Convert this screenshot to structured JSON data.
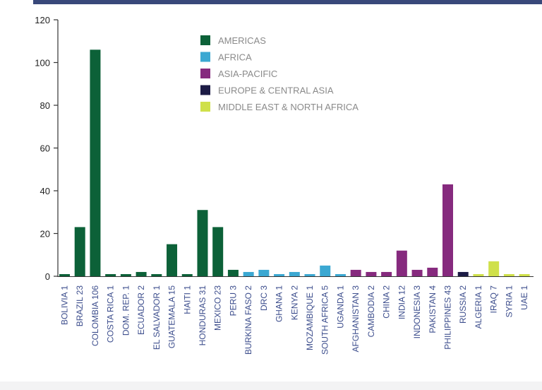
{
  "chart_data": {
    "type": "bar",
    "ylim": [
      0,
      120
    ],
    "yticks": [
      0,
      20,
      40,
      60,
      80,
      100,
      120
    ],
    "grid": false,
    "legend_position": "top-center",
    "legend": [
      {
        "name": "AMERICAS",
        "color": "#0c6138"
      },
      {
        "name": "AFRICA",
        "color": "#3ba8d2"
      },
      {
        "name": "ASIA-PACIFIC",
        "color": "#862a7e"
      },
      {
        "name": "EUROPE & CENTRAL ASIA",
        "color": "#1c1b45"
      },
      {
        "name": "MIDDLE EAST & NORTH AFRICA",
        "color": "#cfe04a"
      }
    ],
    "bars": [
      {
        "label": "BOLIVIA 1",
        "value": 1,
        "region": "AMERICAS"
      },
      {
        "label": "BRAZIL 23",
        "value": 23,
        "region": "AMERICAS"
      },
      {
        "label": "COLOMBIA 106",
        "value": 106,
        "region": "AMERICAS"
      },
      {
        "label": "COSTA RICA 1",
        "value": 1,
        "region": "AMERICAS"
      },
      {
        "label": "DOM. REP. 1",
        "value": 1,
        "region": "AMERICAS"
      },
      {
        "label": "ECUADOR 2",
        "value": 2,
        "region": "AMERICAS"
      },
      {
        "label": "EL SALVADOR 1",
        "value": 1,
        "region": "AMERICAS"
      },
      {
        "label": "GUATEMALA 15",
        "value": 15,
        "region": "AMERICAS"
      },
      {
        "label": "HAITI 1",
        "value": 1,
        "region": "AMERICAS"
      },
      {
        "label": "HONDURAS 31",
        "value": 31,
        "region": "AMERICAS"
      },
      {
        "label": "MEXICO 23",
        "value": 23,
        "region": "AMERICAS"
      },
      {
        "label": "PERU 3",
        "value": 3,
        "region": "AMERICAS"
      },
      {
        "label": "BURKINA FASO 2",
        "value": 2,
        "region": "AFRICA"
      },
      {
        "label": "DRC 3",
        "value": 3,
        "region": "AFRICA"
      },
      {
        "label": "GHANA 1",
        "value": 1,
        "region": "AFRICA"
      },
      {
        "label": "KENYA 2",
        "value": 2,
        "region": "AFRICA"
      },
      {
        "label": "MOZAMBIQUE 1",
        "value": 1,
        "region": "AFRICA"
      },
      {
        "label": "SOUTH AFRICA 5",
        "value": 5,
        "region": "AFRICA"
      },
      {
        "label": "UGANDA 1",
        "value": 1,
        "region": "AFRICA"
      },
      {
        "label": "AFGHANISTAN 3",
        "value": 3,
        "region": "ASIA-PACIFIC"
      },
      {
        "label": "CAMBODIA 2",
        "value": 2,
        "region": "ASIA-PACIFIC"
      },
      {
        "label": "CHINA 2",
        "value": 2,
        "region": "ASIA-PACIFIC"
      },
      {
        "label": "INDIA 12",
        "value": 12,
        "region": "ASIA-PACIFIC"
      },
      {
        "label": "INDONESIA 3",
        "value": 3,
        "region": "ASIA-PACIFIC"
      },
      {
        "label": "PAKISTAN 4",
        "value": 4,
        "region": "ASIA-PACIFIC"
      },
      {
        "label": "PHILIPPINES 43",
        "value": 43,
        "region": "ASIA-PACIFIC"
      },
      {
        "label": "RUSSIA 2",
        "value": 2,
        "region": "EUROPE & CENTRAL ASIA"
      },
      {
        "label": "ALGERIA 1",
        "value": 1,
        "region": "MIDDLE EAST & NORTH AFRICA"
      },
      {
        "label": "IRAQ 7",
        "value": 7,
        "region": "MIDDLE EAST & NORTH AFRICA"
      },
      {
        "label": "SYRIA 1",
        "value": 1,
        "region": "MIDDLE EAST & NORTH AFRICA"
      },
      {
        "label": "UAE 1",
        "value": 1,
        "region": "MIDDLE EAST & NORTH AFRICA"
      }
    ]
  }
}
